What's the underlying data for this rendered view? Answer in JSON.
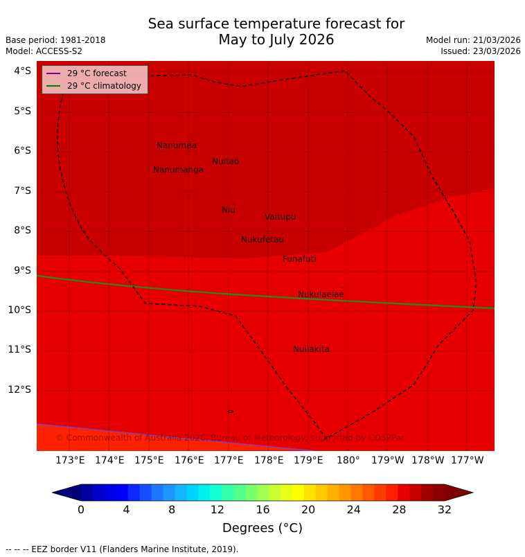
{
  "title_line1": "Sea surface temperature forecast for",
  "title_line2": "May to July 2026",
  "base_period": "Base period: 1981-2018",
  "model": "Model: ACCESS-S2",
  "model_run": "Model run: 21/03/2026",
  "issued": "Issued: 23/03/2026",
  "legend": {
    "forecast_label": "29 °C  forecast",
    "forecast_color": "#800080",
    "climatology_label": "29 °C  climatology",
    "climatology_color": "#008000"
  },
  "lat_ticks": [
    "4°S",
    "5°S",
    "6°S",
    "7°S",
    "8°S",
    "9°S",
    "10°S",
    "11°S",
    "12°S"
  ],
  "lon_ticks": [
    "173°E",
    "174°E",
    "175°E",
    "176°E",
    "177°E",
    "178°E",
    "179°E",
    "180°",
    "179°W",
    "178°W",
    "177°W"
  ],
  "islands": [
    {
      "name": "Nanumea"
    },
    {
      "name": "Nuitao"
    },
    {
      "name": "Nanumanga"
    },
    {
      "name": "Niu"
    },
    {
      "name": "Vaitupu"
    },
    {
      "name": "Nukufetau"
    },
    {
      "name": "Funafuti"
    },
    {
      "name": "Nukulaelae"
    },
    {
      "name": "Nuilakita"
    }
  ],
  "copyright": "© Commonwealth of Australia 2026, Bureau of Meteorology; supported by COSPPac",
  "colorbar": {
    "ticks": [
      "0",
      "4",
      "8",
      "12",
      "16",
      "20",
      "24",
      "28",
      "32"
    ],
    "label": "Degrees (°C)",
    "colors": [
      "#00009a",
      "#0000c8",
      "#0000e6",
      "#0000ff",
      "#0a28ff",
      "#1450ff",
      "#1e78ff",
      "#1e96ff",
      "#14b4ff",
      "#00d2ff",
      "#00f0f0",
      "#14ffd2",
      "#32ffaa",
      "#50ff8c",
      "#78ff6e",
      "#a0ff50",
      "#c8ff32",
      "#e6ff14",
      "#ffff00",
      "#ffe100",
      "#ffc800",
      "#ffaf00",
      "#ff9600",
      "#ff7800",
      "#ff5a00",
      "#ff3c00",
      "#ff1e00",
      "#e60000",
      "#c80000",
      "#a00000",
      "#8c0000"
    ],
    "under_color": "#00007a",
    "over_color": "#800000"
  },
  "footer": "--  --  -- EEZ border V11 (Flanders Marine Institute, 2019)."
}
